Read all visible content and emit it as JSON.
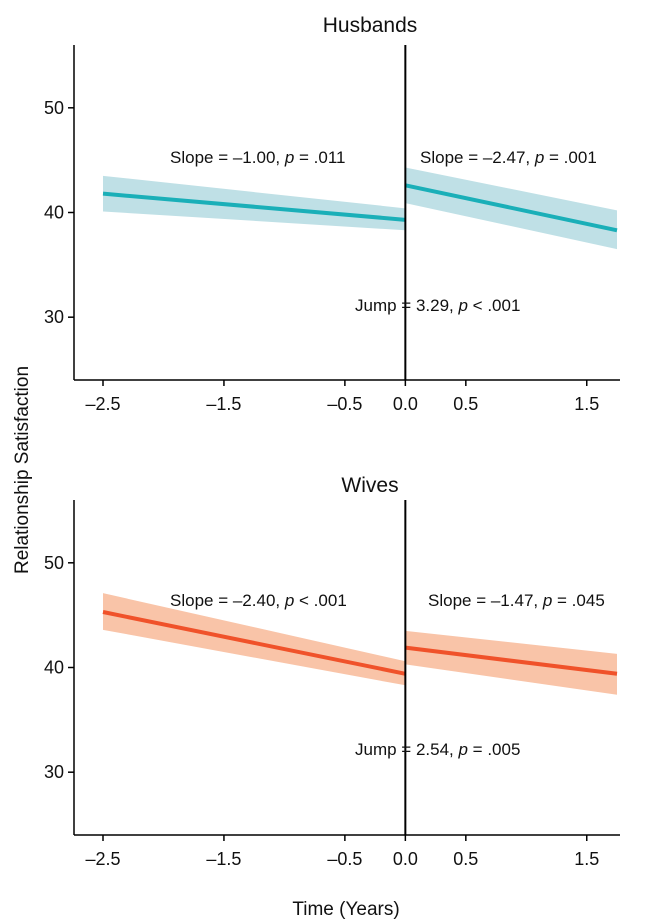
{
  "figure": {
    "ylabel": "Relationship Satisfaction",
    "xlabel": "Time (Years)"
  },
  "chart_data": [
    {
      "type": "line",
      "title": "Husbands",
      "xlim": [
        -2.5,
        1.75
      ],
      "ylim": [
        24,
        56
      ],
      "x_ticks": [
        -2.5,
        -1.5,
        -0.5,
        0.0,
        0.5,
        1.5
      ],
      "x_tick_labels": [
        "–2.5",
        "–1.5",
        "–0.5",
        "0.0",
        "0.5",
        "1.5"
      ],
      "y_ticks": [
        30,
        40,
        50
      ],
      "y_tick_labels": [
        "30",
        "40",
        "50"
      ],
      "color": "#1aafb8",
      "band_color": "#bfe0e6",
      "discontinuity_x": 0,
      "series": [
        {
          "segment": "before",
          "x": [
            -2.5,
            0
          ],
          "y": [
            41.8,
            39.3
          ],
          "lower": [
            40.1,
            38.3
          ],
          "upper": [
            43.5,
            40.4
          ]
        },
        {
          "segment": "after",
          "x": [
            0,
            1.75
          ],
          "y": [
            42.6,
            38.3
          ],
          "lower": [
            40.9,
            36.5
          ],
          "upper": [
            44.3,
            40.2
          ]
        }
      ],
      "annotations": {
        "slope_before": {
          "text": "Slope = –1.00, ",
          "p_text": " = .011"
        },
        "slope_after": {
          "text": "Slope = –2.47, ",
          "p_text": " = .001"
        },
        "jump": {
          "text": "Jump = 3.29, ",
          "p_text": " < .001"
        }
      }
    },
    {
      "type": "line",
      "title": "Wives",
      "xlim": [
        -2.5,
        1.75
      ],
      "ylim": [
        24,
        56
      ],
      "x_ticks": [
        -2.5,
        -1.5,
        -0.5,
        0.0,
        0.5,
        1.5
      ],
      "x_tick_labels": [
        "–2.5",
        "–1.5",
        "–0.5",
        "0.0",
        "0.5",
        "1.5"
      ],
      "y_ticks": [
        30,
        40,
        50
      ],
      "y_tick_labels": [
        "30",
        "40",
        "50"
      ],
      "color": "#f0522a",
      "band_color": "#f9c4a8",
      "discontinuity_x": 0,
      "series": [
        {
          "segment": "before",
          "x": [
            -2.5,
            0
          ],
          "y": [
            45.3,
            39.4
          ],
          "lower": [
            43.6,
            38.3
          ],
          "upper": [
            47.1,
            40.6
          ]
        },
        {
          "segment": "after",
          "x": [
            0,
            1.75
          ],
          "y": [
            41.9,
            39.4
          ],
          "lower": [
            40.3,
            37.4
          ],
          "upper": [
            43.5,
            41.3
          ]
        }
      ],
      "annotations": {
        "slope_before": {
          "text": "Slope = –2.40, ",
          "p_text": " < .001"
        },
        "slope_after": {
          "text": "Slope = –1.47, ",
          "p_text": " = .045"
        },
        "jump": {
          "text": "Jump = 2.54, ",
          "p_text": " = .005"
        }
      }
    }
  ]
}
